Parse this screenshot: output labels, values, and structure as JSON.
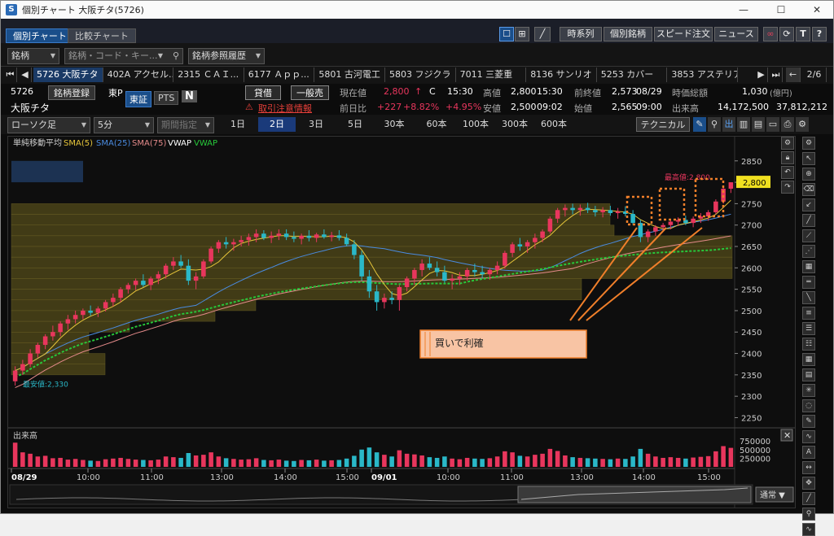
{
  "window": {
    "title": "個別チャート 大阪チタ(5726)",
    "minimize": "—",
    "maximize": "☐",
    "close": "✕"
  },
  "tabs": [
    {
      "label": "個別チャート"
    },
    {
      "label": "比較チャート"
    }
  ],
  "toolbar": {
    "jikeiretsu": "時系列",
    "kobetsu": "個別銘柄",
    "speed": "スピード注文",
    "news": "ニュース",
    "T": "T",
    "help": "?"
  },
  "search": {
    "kind": "銘柄",
    "placeholder": "銘柄・コード・キー...",
    "history": "銘柄参照履歴"
  },
  "stock_tabs": [
    "5726 大阪チタ",
    "402A アクセル...",
    "2315 ＣＡＩ...",
    "6177 Ａｐｐ...",
    "5801 古河電工",
    "5803 フジクラ",
    "7011 三菱重",
    "8136 サンリオ",
    "5253 カバー",
    "3853 アステリア"
  ],
  "page_indicator": "2/6",
  "info": {
    "code": "5726",
    "register": "銘柄登録",
    "market_short": "東P",
    "name": "大阪チタ",
    "market": "東証",
    "pts": "PTS",
    "n": "N",
    "taishaku": "貸借",
    "ippan": "一般売",
    "warning": "取引注意情報",
    "genzai_label": "現在値",
    "genzai": "2,800",
    "c": "C",
    "time": "15:30",
    "takane_label": "高値",
    "takane": "2,800",
    "takane_time": "15:30",
    "zenshu_label": "前終値",
    "zenshu": "2,573",
    "zenshu_date": "08/29",
    "jika_label": "時価総額",
    "jika": "1,030",
    "jika_unit": "(億円)",
    "zenjitsu_label": "前日比",
    "change": "+227",
    "change_pct": "+8.82%",
    "change_pct2": "+4.95%",
    "yasune_label": "安値",
    "yasune": "2,500",
    "yasune_time": "09:02",
    "hajime_label": "始値",
    "hajime": "2,565",
    "hajime_time": "09:00",
    "dekidaka_label": "出来高",
    "dekidaka": "14,172,500",
    "dekidaka2": "37,812,212"
  },
  "controls": {
    "chart_type": "ローソク足",
    "interval": "5分",
    "period": "期間指定",
    "periods": [
      "1日",
      "2日",
      "3日",
      "5日",
      "30本",
      "60本",
      "100本",
      "300本",
      "600本"
    ],
    "selected_period": "2日",
    "technical": "テクニカル"
  },
  "indicators": {
    "title": "単純移動平均",
    "sma5": "SMA(5)",
    "sma25": "SMA(25)",
    "sma75": "SMA(75)",
    "vwap": "VWAP",
    "vvwap": "VWAP"
  },
  "colors": {
    "up": "#e8365d",
    "down": "#2ab8c8",
    "sma5": "#e6c53a",
    "sma25": "#4a8be0",
    "sma75": "#e48a8a",
    "vvwap": "#27c83a",
    "annotation": "#f07f2a"
  },
  "price_axis": {
    "ticks": [
      "2850",
      "2800",
      "2750",
      "2700",
      "2650",
      "2600",
      "2550",
      "2500",
      "2450",
      "2400",
      "2350",
      "2300",
      "2250"
    ],
    "current": "2,800"
  },
  "annotations": {
    "high": "最高値:2,800",
    "low": "最安値:2,330",
    "note": "買いで利確"
  },
  "volume": {
    "label": "出来高",
    "ticks": [
      "750000",
      "500000",
      "250000"
    ]
  },
  "time_axis": [
    "08/29",
    "10:00",
    "11:00",
    "13:00",
    "14:00",
    "15:00",
    "09/01",
    "10:00",
    "11:00",
    "13:00",
    "14:00",
    "15:00"
  ],
  "scroll": {
    "mode": "通常"
  },
  "chart_data": {
    "type": "candlestick",
    "interval": "5分",
    "ylim": [
      2230,
      2880
    ],
    "candles": [
      [
        2335,
        2370,
        2325,
        2360
      ],
      [
        2360,
        2385,
        2350,
        2375
      ],
      [
        2375,
        2410,
        2368,
        2400
      ],
      [
        2400,
        2425,
        2390,
        2420
      ],
      [
        2420,
        2445,
        2410,
        2440
      ],
      [
        2440,
        2465,
        2430,
        2450
      ],
      [
        2450,
        2475,
        2440,
        2470
      ],
      [
        2470,
        2490,
        2455,
        2480
      ],
      [
        2480,
        2500,
        2470,
        2490
      ],
      [
        2490,
        2505,
        2480,
        2500
      ],
      [
        2500,
        2512,
        2488,
        2495
      ],
      [
        2495,
        2510,
        2485,
        2505
      ],
      [
        2505,
        2525,
        2498,
        2520
      ],
      [
        2520,
        2540,
        2510,
        2530
      ],
      [
        2530,
        2555,
        2520,
        2550
      ],
      [
        2550,
        2565,
        2540,
        2560
      ],
      [
        2560,
        2575,
        2548,
        2570
      ],
      [
        2570,
        2585,
        2555,
        2560
      ],
      [
        2560,
        2580,
        2548,
        2575
      ],
      [
        2575,
        2592,
        2562,
        2585
      ],
      [
        2585,
        2610,
        2575,
        2605
      ],
      [
        2605,
        2625,
        2595,
        2615
      ],
      [
        2615,
        2630,
        2600,
        2605
      ],
      [
        2605,
        2620,
        2560,
        2570
      ],
      [
        2570,
        2590,
        2550,
        2580
      ],
      [
        2580,
        2620,
        2575,
        2615
      ],
      [
        2615,
        2650,
        2610,
        2645
      ],
      [
        2645,
        2665,
        2635,
        2660
      ],
      [
        2660,
        2672,
        2645,
        2655
      ],
      [
        2655,
        2668,
        2640,
        2660
      ],
      [
        2660,
        2675,
        2650,
        2665
      ],
      [
        2665,
        2680,
        2652,
        2672
      ],
      [
        2672,
        2690,
        2660,
        2680
      ],
      [
        2680,
        2688,
        2665,
        2670
      ],
      [
        2670,
        2685,
        2658,
        2675
      ],
      [
        2675,
        2690,
        2665,
        2680
      ],
      [
        2680,
        2690,
        2665,
        2672
      ],
      [
        2672,
        2685,
        2660,
        2668
      ],
      [
        2668,
        2680,
        2655,
        2675
      ],
      [
        2675,
        2688,
        2662,
        2670
      ],
      [
        2670,
        2682,
        2660,
        2678
      ],
      [
        2678,
        2690,
        2668,
        2672
      ],
      [
        2672,
        2684,
        2662,
        2676
      ],
      [
        2676,
        2688,
        2664,
        2670
      ],
      [
        2670,
        2680,
        2650,
        2655
      ],
      [
        2655,
        2665,
        2620,
        2630
      ],
      [
        2630,
        2640,
        2570,
        2580
      ],
      [
        2580,
        2595,
        2530,
        2545
      ],
      [
        2545,
        2560,
        2500,
        2520
      ],
      [
        2520,
        2540,
        2505,
        2530
      ],
      [
        2530,
        2545,
        2515,
        2525
      ],
      [
        2525,
        2560,
        2500,
        2555
      ],
      [
        2555,
        2580,
        2545,
        2575
      ],
      [
        2575,
        2600,
        2560,
        2595
      ],
      [
        2595,
        2620,
        2580,
        2610
      ],
      [
        2610,
        2625,
        2595,
        2600
      ],
      [
        2600,
        2615,
        2580,
        2590
      ],
      [
        2590,
        2605,
        2565,
        2570
      ],
      [
        2570,
        2585,
        2550,
        2575
      ],
      [
        2575,
        2590,
        2560,
        2580
      ],
      [
        2580,
        2600,
        2570,
        2595
      ],
      [
        2595,
        2610,
        2580,
        2590
      ],
      [
        2590,
        2605,
        2575,
        2585
      ],
      [
        2585,
        2600,
        2572,
        2595
      ],
      [
        2595,
        2615,
        2585,
        2605
      ],
      [
        2605,
        2640,
        2598,
        2635
      ],
      [
        2635,
        2660,
        2625,
        2655
      ],
      [
        2655,
        2670,
        2640,
        2650
      ],
      [
        2650,
        2665,
        2635,
        2660
      ],
      [
        2660,
        2680,
        2645,
        2670
      ],
      [
        2670,
        2690,
        2660,
        2685
      ],
      [
        2685,
        2720,
        2680,
        2715
      ],
      [
        2715,
        2740,
        2705,
        2735
      ],
      [
        2735,
        2748,
        2720,
        2740
      ],
      [
        2740,
        2750,
        2725,
        2735
      ],
      [
        2735,
        2748,
        2722,
        2740
      ],
      [
        2740,
        2752,
        2728,
        2735
      ],
      [
        2735,
        2745,
        2720,
        2730
      ],
      [
        2730,
        2742,
        2718,
        2735
      ],
      [
        2735,
        2745,
        2722,
        2728
      ],
      [
        2728,
        2740,
        2715,
        2732
      ],
      [
        2732,
        2744,
        2720,
        2726
      ],
      [
        2726,
        2735,
        2700,
        2705
      ],
      [
        2705,
        2712,
        2660,
        2672
      ],
      [
        2672,
        2690,
        2660,
        2685
      ],
      [
        2685,
        2700,
        2675,
        2695
      ],
      [
        2695,
        2705,
        2685,
        2700
      ],
      [
        2700,
        2712,
        2690,
        2708
      ],
      [
        2708,
        2718,
        2698,
        2712
      ],
      [
        2712,
        2722,
        2700,
        2705
      ],
      [
        2705,
        2720,
        2695,
        2715
      ],
      [
        2715,
        2728,
        2705,
        2720
      ],
      [
        2720,
        2735,
        2710,
        2730
      ],
      [
        2730,
        2760,
        2725,
        2755
      ],
      [
        2755,
        2790,
        2750,
        2785
      ],
      [
        2785,
        2800,
        2775,
        2800
      ]
    ],
    "volume": [
      700000,
      420000,
      380000,
      300000,
      320000,
      250000,
      260000,
      210000,
      230000,
      200000,
      180000,
      170000,
      220000,
      240000,
      260000,
      230000,
      210000,
      200000,
      190000,
      210000,
      300000,
      280000,
      260000,
      400000,
      330000,
      350000,
      420000,
      300000,
      250000,
      230000,
      210000,
      220000,
      250000,
      200000,
      190000,
      210000,
      180000,
      170000,
      200000,
      190000,
      210000,
      180000,
      190000,
      200000,
      240000,
      320000,
      500000,
      560000,
      420000,
      350000,
      300000,
      480000,
      380000,
      360000,
      330000,
      280000,
      260000,
      300000,
      240000,
      220000,
      260000,
      240000,
      230000,
      250000,
      300000,
      450000,
      420000,
      320000,
      300000,
      350000,
      380000,
      520000,
      460000,
      330000,
      280000,
      260000,
      250000,
      240000,
      230000,
      220000,
      240000,
      230000,
      300000,
      520000,
      380000,
      300000,
      260000,
      280000,
      260000,
      240000,
      270000,
      290000,
      310000,
      450000,
      600000,
      550000
    ]
  }
}
